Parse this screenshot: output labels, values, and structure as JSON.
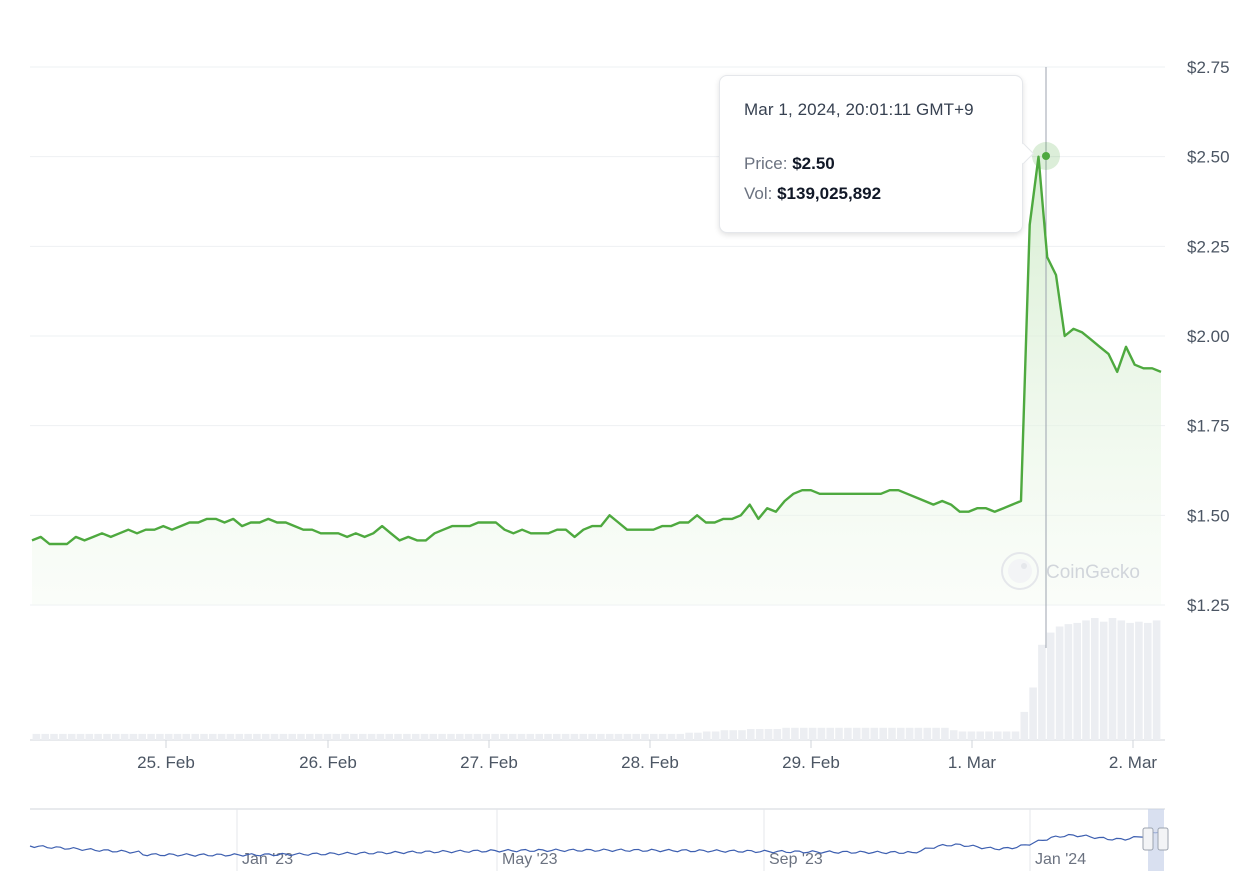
{
  "chart_data": {
    "type": "line",
    "y_ticks": [
      "$2.75",
      "$2.50",
      "$2.25",
      "$2.00",
      "$1.75",
      "$1.50",
      "$1.25"
    ],
    "ylim": [
      1.25,
      2.75
    ],
    "x_ticks": [
      "25. Feb",
      "26. Feb",
      "27. Feb",
      "28. Feb",
      "29. Feb",
      "1. Mar",
      "2. Mar"
    ],
    "grid": true,
    "colors": {
      "line": "#4ea93f",
      "area": "#e3f3df",
      "volume": "#eceef2",
      "navigator": "#3d5fb0"
    },
    "series": [
      {
        "values": [
          1.43,
          1.44,
          1.42,
          1.42,
          1.42,
          1.44,
          1.43,
          1.44,
          1.45,
          1.44,
          1.45,
          1.46,
          1.45,
          1.46,
          1.46,
          1.47,
          1.46,
          1.47,
          1.48,
          1.48,
          1.49,
          1.49,
          1.48,
          1.49,
          1.47,
          1.48,
          1.48,
          1.49,
          1.48,
          1.48,
          1.47,
          1.46,
          1.46,
          1.45,
          1.45,
          1.45,
          1.44,
          1.45,
          1.44,
          1.45,
          1.47,
          1.45,
          1.43,
          1.44,
          1.43,
          1.43,
          1.45,
          1.46,
          1.47,
          1.47,
          1.47,
          1.48,
          1.48,
          1.48,
          1.46,
          1.45,
          1.46,
          1.45,
          1.45,
          1.45,
          1.46,
          1.46,
          1.44,
          1.46,
          1.47,
          1.47,
          1.5,
          1.48,
          1.46,
          1.46,
          1.46,
          1.46,
          1.47,
          1.47,
          1.48,
          1.48,
          1.5,
          1.48,
          1.48,
          1.49,
          1.49,
          1.5,
          1.53,
          1.49,
          1.52,
          1.51,
          1.54,
          1.56,
          1.57,
          1.57,
          1.56,
          1.56,
          1.56,
          1.56,
          1.56,
          1.56,
          1.56,
          1.56,
          1.57,
          1.57,
          1.56,
          1.55,
          1.54,
          1.53,
          1.54,
          1.53,
          1.51,
          1.51,
          1.52,
          1.52,
          1.51,
          1.52,
          1.53,
          1.54,
          2.31,
          2.5,
          2.22,
          2.17,
          2.0,
          2.02,
          2.01,
          1.99,
          1.97,
          1.95,
          1.9,
          1.97,
          1.92,
          1.91,
          1.91,
          1.9
        ]
      }
    ],
    "volume": [
      0.05,
      0.05,
      0.05,
      0.05,
      0.05,
      0.05,
      0.05,
      0.05,
      0.05,
      0.05,
      0.05,
      0.05,
      0.05,
      0.05,
      0.05,
      0.05,
      0.05,
      0.05,
      0.05,
      0.05,
      0.05,
      0.05,
      0.05,
      0.05,
      0.05,
      0.05,
      0.05,
      0.05,
      0.05,
      0.05,
      0.05,
      0.05,
      0.05,
      0.05,
      0.05,
      0.05,
      0.05,
      0.05,
      0.05,
      0.05,
      0.05,
      0.05,
      0.05,
      0.05,
      0.05,
      0.05,
      0.05,
      0.05,
      0.05,
      0.05,
      0.05,
      0.05,
      0.05,
      0.05,
      0.05,
      0.05,
      0.05,
      0.05,
      0.05,
      0.05,
      0.05,
      0.05,
      0.05,
      0.05,
      0.05,
      0.05,
      0.05,
      0.05,
      0.05,
      0.05,
      0.05,
      0.05,
      0.05,
      0.05,
      0.06,
      0.06,
      0.07,
      0.07,
      0.08,
      0.08,
      0.08,
      0.09,
      0.09,
      0.09,
      0.09,
      0.1,
      0.1,
      0.1,
      0.1,
      0.1,
      0.1,
      0.1,
      0.1,
      0.1,
      0.1,
      0.1,
      0.1,
      0.1,
      0.1,
      0.1,
      0.1,
      0.1,
      0.1,
      0.1,
      0.08,
      0.07,
      0.07,
      0.07,
      0.07,
      0.07,
      0.07,
      0.07,
      0.23,
      0.43,
      0.78,
      0.88,
      0.93,
      0.95,
      0.96,
      0.98,
      1.0,
      0.97,
      1.0,
      0.98,
      0.96,
      0.97,
      0.96,
      0.98
    ]
  },
  "tooltip": {
    "time": "Mar 1, 2024, 20:01:11 GMT+9",
    "price_label": "Price:",
    "price_value": "$2.50",
    "vol_label": "Vol:",
    "vol_value": "$139,025,892"
  },
  "watermark": "CoinGecko",
  "navigator": {
    "labels": [
      "Jan '23",
      "May '23",
      "Sep '23",
      "Jan '24"
    ]
  }
}
